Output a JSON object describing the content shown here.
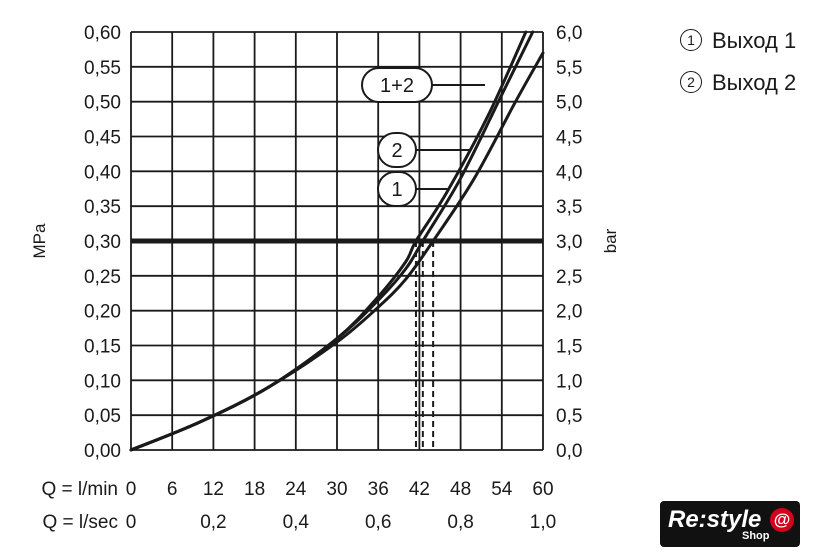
{
  "chart_data": {
    "type": "line",
    "left_axis": {
      "label": "MPa",
      "ticks": [
        "0,00",
        "0,05",
        "0,10",
        "0,15",
        "0,20",
        "0,25",
        "0,30",
        "0,35",
        "0,40",
        "0,45",
        "0,50",
        "0,55",
        "0,60"
      ],
      "range": [
        0,
        0.6
      ]
    },
    "right_axis": {
      "label": "bar",
      "ticks": [
        "0,0",
        "0,5",
        "1,0",
        "1,5",
        "2,0",
        "2,5",
        "3,0",
        "3,5",
        "4,0",
        "4,5",
        "5,0",
        "5,5",
        "6,0"
      ],
      "range": [
        0,
        6
      ]
    },
    "x_axis": {
      "range": [
        0,
        60
      ],
      "row1_label": "Q = l/min",
      "row1_ticks": [
        {
          "v": 0,
          "t": "0"
        },
        {
          "v": 6,
          "t": "6"
        },
        {
          "v": 12,
          "t": "12"
        },
        {
          "v": 18,
          "t": "18"
        },
        {
          "v": 24,
          "t": "24"
        },
        {
          "v": 30,
          "t": "30"
        },
        {
          "v": 36,
          "t": "36"
        },
        {
          "v": 42,
          "t": "42"
        },
        {
          "v": 48,
          "t": "48"
        },
        {
          "v": 54,
          "t": "54"
        },
        {
          "v": 60,
          "t": "60"
        }
      ],
      "row2_label": "Q = l/sec",
      "row2_ticks": [
        {
          "v": 0,
          "t": "0"
        },
        {
          "v": 12,
          "t": "0,2"
        },
        {
          "v": 24,
          "t": "0,4"
        },
        {
          "v": 36,
          "t": "0,6"
        },
        {
          "v": 48,
          "t": "0,8"
        },
        {
          "v": 60,
          "t": "1,0"
        }
      ]
    },
    "grid": true,
    "reference_line": {
      "y": 0.3
    },
    "series": [
      {
        "name": "1+2",
        "points": [
          [
            0,
            0
          ],
          [
            10,
            0.04
          ],
          [
            20,
            0.09
          ],
          [
            30,
            0.16
          ],
          [
            36,
            0.22
          ],
          [
            40,
            0.27
          ],
          [
            41.5,
            0.3
          ],
          [
            46,
            0.37
          ],
          [
            52,
            0.48
          ],
          [
            57.5,
            0.6
          ]
        ]
      },
      {
        "name": "2",
        "points": [
          [
            0,
            0
          ],
          [
            10,
            0.04
          ],
          [
            20,
            0.09
          ],
          [
            30,
            0.16
          ],
          [
            36,
            0.215
          ],
          [
            40,
            0.26
          ],
          [
            42.5,
            0.3
          ],
          [
            48,
            0.39
          ],
          [
            54,
            0.51
          ],
          [
            58.5,
            0.6
          ]
        ]
      },
      {
        "name": "1",
        "points": [
          [
            0,
            0
          ],
          [
            10,
            0.04
          ],
          [
            20,
            0.09
          ],
          [
            30,
            0.155
          ],
          [
            36,
            0.205
          ],
          [
            40,
            0.245
          ],
          [
            44,
            0.3
          ],
          [
            50,
            0.39
          ],
          [
            56,
            0.5
          ],
          [
            60,
            0.57
          ]
        ]
      }
    ],
    "dropdowns": [
      41.5,
      42.5,
      44
    ]
  },
  "legend": [
    {
      "num": "1",
      "label": "Выход 1"
    },
    {
      "num": "2",
      "label": "Выход 2"
    }
  ],
  "logo": {
    "main": "Re:style",
    "sub": "Shop",
    "mark": "@"
  }
}
